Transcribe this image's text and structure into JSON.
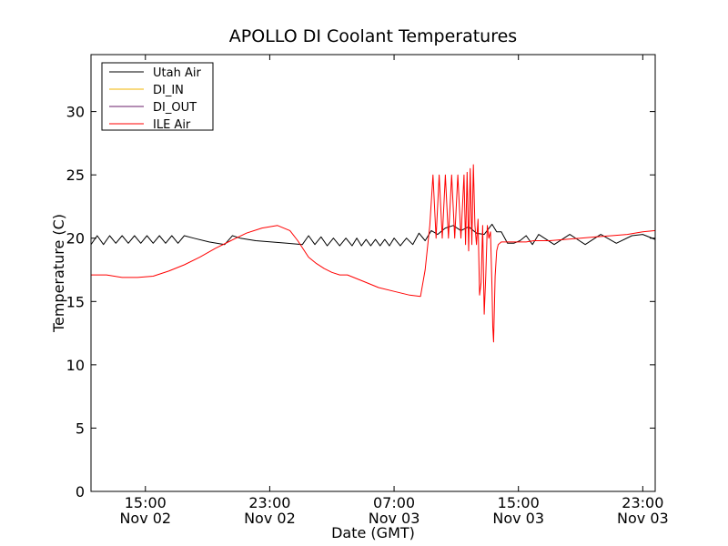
{
  "chart_data": {
    "type": "line",
    "title": "APOLLO DI Coolant Temperatures",
    "xlabel": "Date (GMT)",
    "ylabel": "Temperature (C)",
    "xlim": [
      11.5,
      47.8
    ],
    "ylim": [
      0,
      34.5
    ],
    "x_unit": "hours since 2014-11-02 00:00 GMT",
    "x_ticks": [
      {
        "x": 15,
        "label": [
          "15:00",
          "Nov 02"
        ]
      },
      {
        "x": 23,
        "label": [
          "23:00",
          "Nov 02"
        ]
      },
      {
        "x": 31,
        "label": [
          "07:00",
          "Nov 03"
        ]
      },
      {
        "x": 39,
        "label": [
          "15:00",
          "Nov 03"
        ]
      },
      {
        "x": 47,
        "label": [
          "23:00",
          "Nov 03"
        ]
      }
    ],
    "y_ticks": [
      0,
      5,
      10,
      15,
      20,
      25,
      30
    ],
    "grid": false,
    "legend": {
      "position": "top-left",
      "entries": [
        {
          "name": "Utah Air",
          "color": "#000000"
        },
        {
          "name": "DI_IN",
          "color": "#f2b500"
        },
        {
          "name": "DI_OUT",
          "color": "#6a1b6a"
        },
        {
          "name": "ILE Air",
          "color": "#ff0000"
        }
      ]
    },
    "series": [
      {
        "name": "Utah Air",
        "color": "#000000",
        "x": [
          11.5,
          11.9,
          12.3,
          12.7,
          13.1,
          13.5,
          13.9,
          14.3,
          14.7,
          15.1,
          15.5,
          15.9,
          16.3,
          16.7,
          17.1,
          17.5,
          18.1,
          19.1,
          20.1,
          20.6,
          21.1,
          22.1,
          23.1,
          24.1,
          25.1,
          25.5,
          25.9,
          26.3,
          26.7,
          27.1,
          27.5,
          27.9,
          28.3,
          28.6,
          28.9,
          29.2,
          29.5,
          29.8,
          30.1,
          30.4,
          30.7,
          31.0,
          31.4,
          31.8,
          32.2,
          32.6,
          33.0,
          33.4,
          33.8,
          34.3,
          34.8,
          35.3,
          35.8,
          36.3,
          36.8,
          37.3,
          37.6,
          37.9,
          38.3,
          38.7,
          39.1,
          39.5,
          39.9,
          40.3,
          41.3,
          42.3,
          43.3,
          44.3,
          45.3,
          46.3,
          47.0,
          47.8
        ],
        "y": [
          19.5,
          20.2,
          19.5,
          20.2,
          19.6,
          20.2,
          19.6,
          20.2,
          19.6,
          20.2,
          19.6,
          20.2,
          19.6,
          20.2,
          19.6,
          20.2,
          20.0,
          19.7,
          19.5,
          20.2,
          20.0,
          19.8,
          19.7,
          19.6,
          19.5,
          20.2,
          19.5,
          20.1,
          19.4,
          20.0,
          19.4,
          20.0,
          19.4,
          20.0,
          19.4,
          19.9,
          19.4,
          19.9,
          19.4,
          19.9,
          19.4,
          20.0,
          19.4,
          20.0,
          19.5,
          20.4,
          19.8,
          20.6,
          20.3,
          20.8,
          21.0,
          20.6,
          20.9,
          20.4,
          20.3,
          21.1,
          20.5,
          20.5,
          19.6,
          19.6,
          19.8,
          20.2,
          19.5,
          20.3,
          19.5,
          20.3,
          19.5,
          20.3,
          19.6,
          20.2,
          20.3,
          19.9
        ]
      },
      {
        "name": "DI_IN",
        "color": "#f2b500",
        "x": [],
        "y": []
      },
      {
        "name": "DI_OUT",
        "color": "#6a1b6a",
        "x": [],
        "y": []
      },
      {
        "name": "ILE Air",
        "color": "#ff0000",
        "x": [
          11.5,
          12.5,
          13.5,
          14.5,
          15.5,
          16.5,
          17.5,
          18.5,
          19.5,
          20.5,
          21.5,
          22.5,
          23.5,
          24.3,
          24.8,
          25.5,
          26.0,
          26.5,
          27.0,
          27.5,
          28.0,
          29.0,
          30.0,
          31.0,
          32.0,
          32.7,
          33.0,
          33.3,
          33.5,
          33.7,
          33.9,
          34.1,
          34.3,
          34.5,
          34.7,
          34.9,
          35.1,
          35.3,
          35.5,
          35.6,
          35.7,
          35.8,
          35.9,
          36.0,
          36.1,
          36.2,
          36.3,
          36.4,
          36.5,
          36.6,
          36.7,
          36.8,
          36.9,
          37.0,
          37.1,
          37.2,
          37.3,
          37.35,
          37.4,
          37.5,
          37.6,
          37.7,
          37.9,
          38.1,
          38.3,
          38.6,
          39.0,
          39.5,
          40.0,
          41.0,
          42.0,
          43.0,
          44.0,
          45.0,
          46.0,
          47.0,
          47.8
        ],
        "y": [
          17.1,
          17.1,
          16.9,
          16.9,
          17.0,
          17.4,
          17.9,
          18.5,
          19.2,
          19.8,
          20.4,
          20.8,
          21.0,
          20.6,
          19.8,
          18.5,
          18.0,
          17.6,
          17.3,
          17.1,
          17.1,
          16.6,
          16.1,
          15.8,
          15.5,
          15.4,
          17.5,
          21.0,
          25.0,
          20.0,
          25.0,
          20.0,
          25.0,
          20.0,
          25.0,
          20.0,
          25.0,
          20.0,
          25.0,
          19.5,
          25.2,
          19.0,
          25.5,
          19.5,
          25.8,
          21.0,
          19.5,
          21.5,
          15.5,
          16.5,
          21.0,
          14.0,
          17.0,
          21.0,
          20.0,
          20.5,
          16.0,
          13.0,
          11.8,
          17.0,
          19.0,
          19.5,
          19.7,
          19.7,
          19.7,
          19.7,
          19.7,
          19.7,
          19.8,
          19.8,
          19.9,
          20.0,
          20.1,
          20.2,
          20.3,
          20.5,
          20.6
        ]
      }
    ]
  }
}
